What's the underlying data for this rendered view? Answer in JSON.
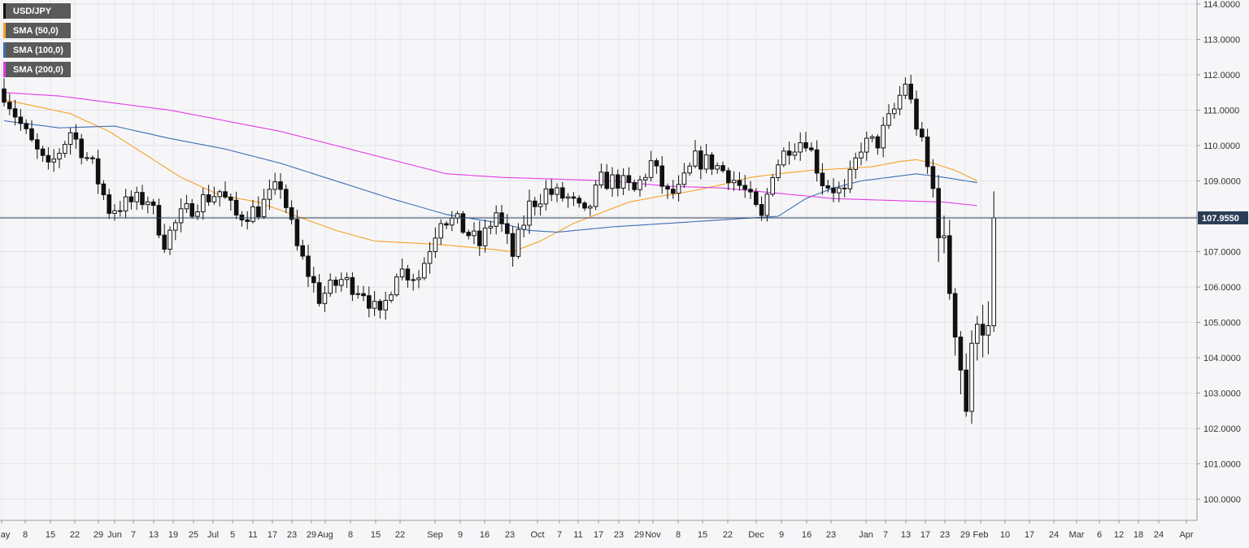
{
  "chart_data": {
    "type": "candlestick",
    "title": "",
    "xlabel": "",
    "ylabel": "",
    "ylim": [
      99.8,
      114.1
    ],
    "y_ticks": [
      "114.0000",
      "113.0000",
      "112.0000",
      "111.0000",
      "110.0000",
      "109.0000",
      "108.0000",
      "107.0000",
      "106.0000",
      "105.0000",
      "104.0000",
      "103.0000",
      "102.0000",
      "101.0000",
      "100.0000"
    ],
    "x_ticks": [
      "May",
      "8",
      "15",
      "22",
      "29",
      "Jun",
      "7",
      "13",
      "19",
      "25",
      "Jul",
      "5",
      "11",
      "17",
      "23",
      "29",
      "Aug",
      "8",
      "15",
      "22",
      "Sep",
      "9",
      "16",
      "23",
      "Oct",
      "7",
      "11",
      "17",
      "23",
      "29",
      "Nov",
      "8",
      "15",
      "22",
      "Dec",
      "9",
      "16",
      "23",
      "Jan",
      "7",
      "13",
      "17",
      "23",
      "29",
      "Feb",
      "10",
      "17",
      "24",
      "Mar",
      "6",
      "12",
      "18",
      "24",
      "Apr"
    ],
    "current_price": "107.9550",
    "series": [
      {
        "name": "USD/JPY",
        "color": "#111111",
        "anchors": [
          [
            0,
            111.5
          ],
          [
            1,
            111.2
          ],
          [
            4,
            110.3
          ],
          [
            8,
            109.3
          ],
          [
            12,
            110.4
          ],
          [
            16,
            109.4
          ],
          [
            19,
            108.2
          ],
          [
            23,
            108.4
          ],
          [
            26,
            108.5
          ],
          [
            29,
            107.3
          ],
          [
            32,
            108.0
          ],
          [
            35,
            108.4
          ],
          [
            39,
            108.7
          ],
          [
            42,
            108.0
          ],
          [
            46,
            108.2
          ],
          [
            50,
            108.9
          ],
          [
            53,
            107.1
          ],
          [
            57,
            105.7
          ],
          [
            61,
            106.2
          ],
          [
            65,
            105.9
          ],
          [
            68,
            105.1
          ],
          [
            71,
            106.5
          ],
          [
            75,
            106.3
          ],
          [
            79,
            108.0
          ],
          [
            82,
            107.8
          ],
          [
            86,
            107.2
          ],
          [
            89,
            108.1
          ],
          [
            92,
            106.9
          ],
          [
            95,
            108.3
          ],
          [
            98,
            108.7
          ],
          [
            102,
            108.5
          ],
          [
            105,
            108.0
          ],
          [
            108,
            109.0
          ],
          [
            111,
            109.0
          ],
          [
            114,
            108.7
          ],
          [
            117,
            109.5
          ],
          [
            120,
            108.6
          ],
          [
            122,
            108.7
          ],
          [
            125,
            109.6
          ],
          [
            128,
            109.5
          ],
          [
            131,
            109.2
          ],
          [
            134,
            108.7
          ],
          [
            137,
            107.9
          ],
          [
            139,
            109.3
          ],
          [
            142,
            110.0
          ],
          [
            145,
            110.2
          ],
          [
            148,
            109.0
          ],
          [
            152,
            108.6
          ],
          [
            155,
            110.0
          ],
          [
            158,
            110.1
          ],
          [
            161,
            111.0
          ],
          [
            163,
            111.8
          ],
          [
            166,
            110.0
          ],
          [
            168,
            108.7
          ],
          [
            170,
            107.0
          ],
          [
            172,
            105.0
          ],
          [
            174,
            102.6
          ],
          [
            176,
            105.4
          ],
          [
            178,
            104.6
          ],
          [
            179,
            108.0
          ]
        ]
      },
      {
        "name": "SMA (50,0)",
        "color": "#f7a125",
        "anchors": [
          [
            0,
            111.3
          ],
          [
            6,
            111.1
          ],
          [
            12,
            110.9
          ],
          [
            19,
            110.4
          ],
          [
            25,
            109.8
          ],
          [
            32,
            109.1
          ],
          [
            39,
            108.6
          ],
          [
            46,
            108.4
          ],
          [
            53,
            108.0
          ],
          [
            60,
            107.6
          ],
          [
            67,
            107.3
          ],
          [
            73,
            107.25
          ],
          [
            79,
            107.2
          ],
          [
            86,
            107.1
          ],
          [
            92,
            107.0
          ],
          [
            97,
            107.3
          ],
          [
            103,
            107.8
          ],
          [
            108,
            108.1
          ],
          [
            113,
            108.4
          ],
          [
            118,
            108.55
          ],
          [
            124,
            108.7
          ],
          [
            130,
            108.9
          ],
          [
            135,
            109.1
          ],
          [
            140,
            109.2
          ],
          [
            146,
            109.3
          ],
          [
            152,
            109.35
          ],
          [
            157,
            109.4
          ],
          [
            162,
            109.55
          ],
          [
            165,
            109.6
          ],
          [
            168,
            109.5
          ],
          [
            172,
            109.3
          ],
          [
            176,
            109.0
          ]
        ]
      },
      {
        "name": "SMA (100,0)",
        "color": "#3e6eb4",
        "anchors": [
          [
            0,
            110.7
          ],
          [
            10,
            110.5
          ],
          [
            20,
            110.55
          ],
          [
            30,
            110.2
          ],
          [
            40,
            109.9
          ],
          [
            50,
            109.5
          ],
          [
            60,
            109.0
          ],
          [
            70,
            108.5
          ],
          [
            80,
            108.05
          ],
          [
            90,
            107.8
          ],
          [
            95,
            107.6
          ],
          [
            100,
            107.55
          ],
          [
            110,
            107.7
          ],
          [
            120,
            107.8
          ],
          [
            130,
            107.9
          ],
          [
            140,
            108.0
          ],
          [
            145,
            108.5
          ],
          [
            150,
            108.8
          ],
          [
            155,
            109.0
          ],
          [
            160,
            109.1
          ],
          [
            165,
            109.2
          ],
          [
            170,
            109.1
          ],
          [
            176,
            108.95
          ]
        ]
      },
      {
        "name": "SMA (200,0)",
        "color": "#e33ce6",
        "anchors": [
          [
            0,
            111.5
          ],
          [
            10,
            111.4
          ],
          [
            20,
            111.2
          ],
          [
            30,
            111.0
          ],
          [
            40,
            110.7
          ],
          [
            50,
            110.4
          ],
          [
            60,
            110.0
          ],
          [
            70,
            109.6
          ],
          [
            80,
            109.2
          ],
          [
            90,
            109.1
          ],
          [
            100,
            109.05
          ],
          [
            110,
            109.0
          ],
          [
            120,
            108.85
          ],
          [
            130,
            108.8
          ],
          [
            140,
            108.65
          ],
          [
            150,
            108.5
          ],
          [
            160,
            108.45
          ],
          [
            170,
            108.4
          ],
          [
            176,
            108.3
          ]
        ]
      }
    ]
  }
}
